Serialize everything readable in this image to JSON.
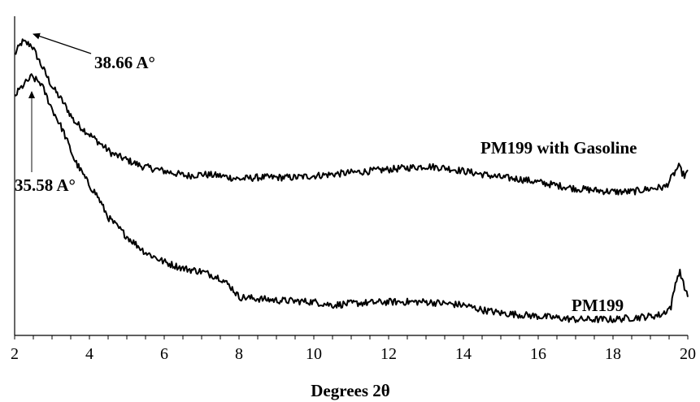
{
  "chart_data": {
    "type": "line",
    "title": "",
    "xlabel": "Degrees 2θ",
    "ylabel": "",
    "xlim": [
      2,
      20
    ],
    "ylim": [
      0,
      100
    ],
    "xticks": [
      "2",
      "4",
      "6",
      "8",
      "10",
      "12",
      "14",
      "16",
      "18",
      "20"
    ],
    "xminor_step": 0.5,
    "grid": false,
    "legend": "none",
    "series": [
      {
        "name": "PM199 with Gasoline",
        "color": "#000000",
        "x": [
          2.0,
          2.2,
          2.45,
          2.7,
          3.0,
          3.3,
          3.6,
          4.0,
          4.3,
          4.6,
          5.0,
          5.4,
          5.8,
          6.2,
          6.6,
          7.0,
          7.5,
          8.0,
          8.5,
          9.0,
          9.5,
          10.0,
          10.5,
          11.0,
          11.5,
          12.0,
          12.5,
          13.0,
          13.5,
          14.0,
          14.5,
          15.0,
          15.5,
          16.0,
          16.5,
          17.0,
          17.5,
          18.0,
          18.5,
          19.0,
          19.4,
          19.6,
          19.75,
          19.9,
          20.0
        ],
        "y": [
          88,
          92,
          91,
          85,
          78,
          73,
          67,
          63,
          60,
          57,
          55,
          53,
          52,
          51,
          50,
          50.5,
          50,
          49,
          49.5,
          49.5,
          49.5,
          50,
          50.5,
          51,
          51.5,
          52,
          52.5,
          53,
          52.5,
          51.5,
          50.5,
          49.5,
          49,
          48,
          47,
          46,
          45.5,
          45,
          45,
          46,
          46.5,
          50,
          53,
          50,
          51
        ]
      },
      {
        "name": "PM199",
        "color": "#000000",
        "x": [
          2.0,
          2.2,
          2.45,
          2.7,
          3.0,
          3.3,
          3.6,
          4.0,
          4.2,
          4.5,
          5.0,
          5.5,
          6.0,
          6.5,
          7.0,
          7.5,
          7.8,
          8.0,
          8.5,
          9.0,
          10.0,
          10.5,
          11.0,
          12.0,
          13.0,
          14.0,
          14.5,
          15.0,
          15.5,
          16.0,
          16.5,
          17.0,
          17.5,
          18.0,
          18.5,
          19.0,
          19.3,
          19.55,
          19.7,
          19.8,
          19.9,
          20.0
        ],
        "y": [
          75,
          78,
          81,
          79,
          71,
          64,
          55,
          47,
          44,
          37,
          31,
          26,
          23,
          21,
          20,
          18,
          15,
          12,
          11.5,
          11,
          10.5,
          9.5,
          10,
          10.5,
          10.5,
          9.5,
          8,
          7,
          6.5,
          6,
          5.5,
          5,
          5,
          5,
          5.5,
          6,
          6.5,
          9,
          18,
          20,
          15,
          13
        ]
      }
    ],
    "annotations": [
      {
        "text": "38.66 A°",
        "x": 2.45,
        "y": 92,
        "arrow": true
      },
      {
        "text": "35.58 A°",
        "x": 2.45,
        "y": 81,
        "arrow": true
      },
      {
        "text": "PM199 with Gasoline",
        "series": 0
      },
      {
        "text": "PM199",
        "series": 1
      }
    ]
  }
}
